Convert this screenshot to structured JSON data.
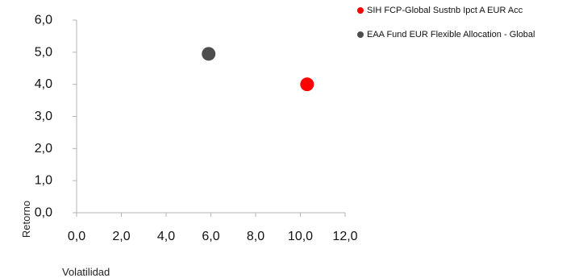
{
  "chart_data": {
    "type": "scatter",
    "xlabel": "Volatilidad",
    "ylabel": "Retorno",
    "xlim": [
      0,
      12
    ],
    "ylim": [
      0,
      6
    ],
    "x_ticks": [
      "0,0",
      "2,0",
      "4,0",
      "6,0",
      "8,0",
      "10,0",
      "12,0"
    ],
    "y_ticks": [
      "0,0",
      "1,0",
      "2,0",
      "3,0",
      "4,0",
      "5,0",
      "6,0"
    ],
    "grid": false,
    "legend_position": "top-right",
    "series": [
      {
        "name": "SIH FCP-Global Sustnb Ipct A EUR Acc",
        "color": "#ff0000",
        "points": [
          {
            "x": 10.3,
            "y": 4.0
          }
        ]
      },
      {
        "name": "EAA Fund EUR Flexible Allocation - Global",
        "color": "#4d4d4d",
        "points": [
          {
            "x": 5.9,
            "y": 4.95
          }
        ]
      }
    ]
  }
}
